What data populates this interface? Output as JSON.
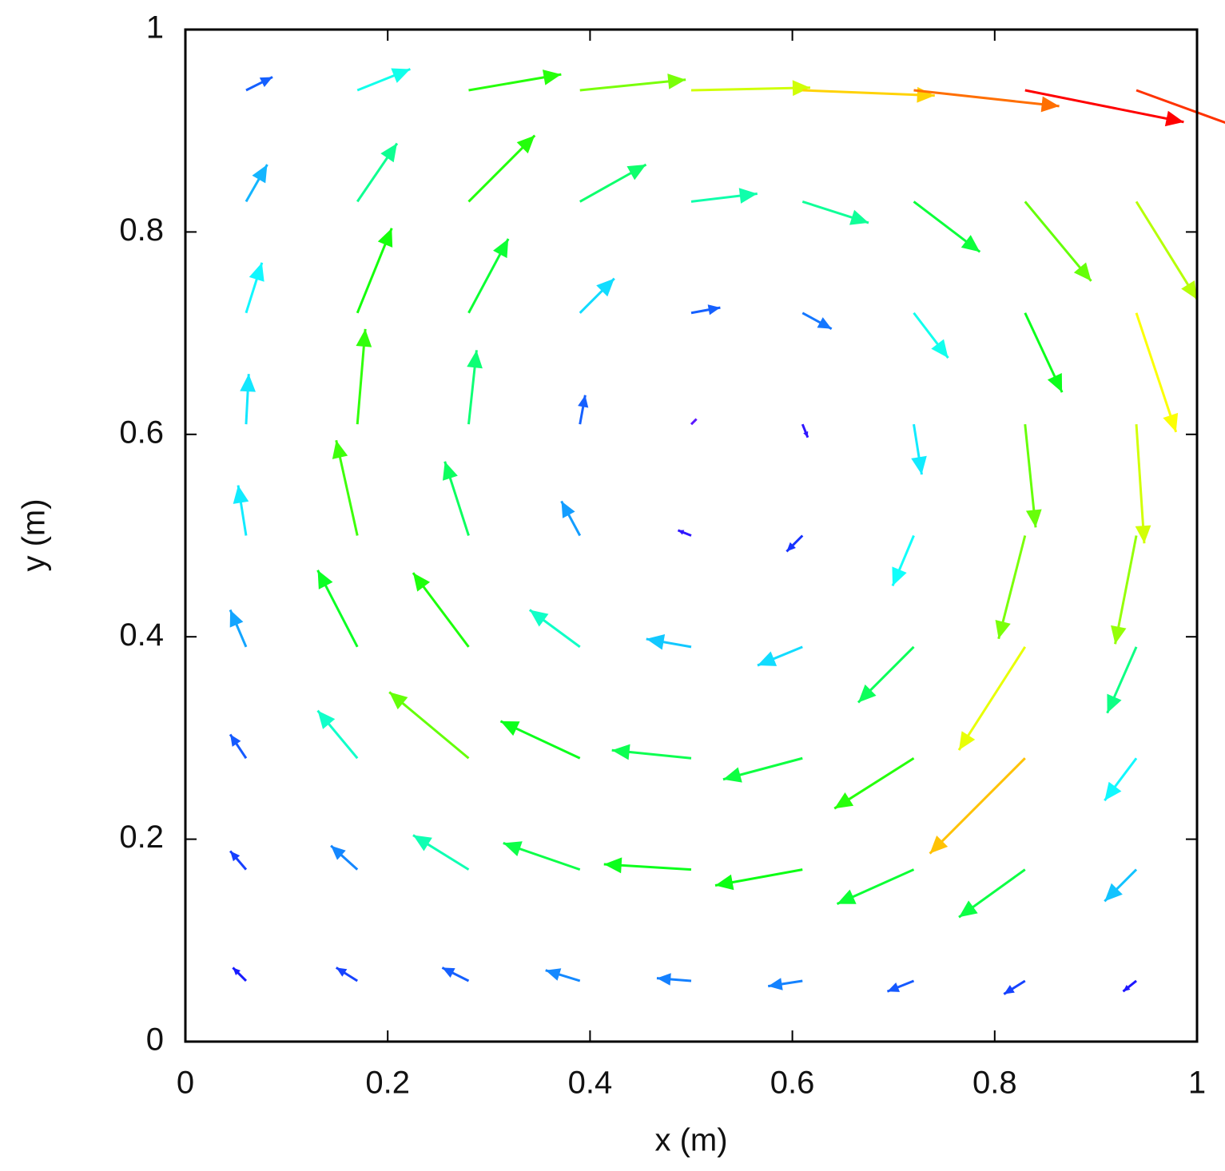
{
  "chart_data": {
    "type": "quiver",
    "xlabel": "x (m)",
    "ylabel": "y (m)",
    "xlim": [
      0,
      1
    ],
    "ylim": [
      0,
      1
    ],
    "xticks": [
      0,
      0.2,
      0.4,
      0.6,
      0.8,
      1
    ],
    "yticks": [
      0,
      0.2,
      0.4,
      0.6,
      0.8,
      1
    ],
    "colormap": "rainbow",
    "x": [
      0.06,
      0.17,
      0.28,
      0.39,
      0.5,
      0.61,
      0.72,
      0.83,
      0.94,
      0.06,
      0.17,
      0.28,
      0.39,
      0.5,
      0.61,
      0.72,
      0.83,
      0.94,
      0.06,
      0.17,
      0.28,
      0.39,
      0.5,
      0.61,
      0.72,
      0.83,
      0.94,
      0.06,
      0.17,
      0.28,
      0.39,
      0.5,
      0.61,
      0.72,
      0.83,
      0.94,
      0.06,
      0.17,
      0.28,
      0.39,
      0.5,
      0.61,
      0.72,
      0.83,
      0.94,
      0.06,
      0.17,
      0.28,
      0.39,
      0.5,
      0.61,
      0.72,
      0.83,
      0.94,
      0.06,
      0.17,
      0.28,
      0.39,
      0.5,
      0.61,
      0.72,
      0.83,
      0.94,
      0.06,
      0.17,
      0.28,
      0.39,
      0.5,
      0.61,
      0.72,
      0.83,
      0.94,
      0.06,
      0.17,
      0.28,
      0.39,
      0.5,
      0.61,
      0.72,
      0.83,
      0.94
    ],
    "y": [
      0.06,
      0.06,
      0.06,
      0.06,
      0.06,
      0.06,
      0.06,
      0.06,
      0.06,
      0.17,
      0.17,
      0.17,
      0.17,
      0.17,
      0.17,
      0.17,
      0.17,
      0.17,
      0.28,
      0.28,
      0.28,
      0.28,
      0.28,
      0.28,
      0.28,
      0.28,
      0.28,
      0.39,
      0.39,
      0.39,
      0.39,
      0.39,
      0.39,
      0.39,
      0.39,
      0.39,
      0.5,
      0.5,
      0.5,
      0.5,
      0.5,
      0.5,
      0.5,
      0.5,
      0.5,
      0.61,
      0.61,
      0.61,
      0.61,
      0.61,
      0.61,
      0.61,
      0.61,
      0.61,
      0.72,
      0.72,
      0.72,
      0.72,
      0.72,
      0.72,
      0.72,
      0.72,
      0.72,
      0.83,
      0.83,
      0.83,
      0.83,
      0.83,
      0.83,
      0.83,
      0.83,
      0.83,
      0.94,
      0.94,
      0.94,
      0.94,
      0.94,
      0.94,
      0.94,
      0.94,
      0.94
    ],
    "u": [
      -0.05,
      -0.08,
      -0.1,
      -0.13,
      -0.13,
      -0.13,
      -0.1,
      -0.08,
      -0.05,
      -0.06,
      -0.1,
      -0.21,
      -0.29,
      -0.33,
      -0.33,
      -0.29,
      -0.25,
      -0.12,
      -0.06,
      -0.15,
      -0.3,
      -0.3,
      -0.3,
      -0.3,
      -0.3,
      -0.36,
      -0.12,
      -0.06,
      -0.15,
      -0.21,
      -0.19,
      -0.17,
      -0.17,
      -0.21,
      -0.25,
      -0.11,
      -0.03,
      -0.08,
      -0.09,
      -0.07,
      -0.05,
      -0.06,
      -0.08,
      -0.1,
      -0.08,
      0.01,
      0.03,
      0.03,
      0.02,
      0.02,
      0.02,
      0.03,
      0.04,
      0.03,
      0.06,
      0.13,
      0.15,
      0.13,
      0.11,
      0.11,
      0.13,
      0.14,
      0.15,
      0.08,
      0.15,
      0.25,
      0.25,
      0.25,
      0.25,
      0.25,
      0.25,
      0.23,
      0.1,
      0.2,
      0.35,
      0.4,
      0.45,
      0.5,
      0.55,
      0.6,
      0.55
    ],
    "v": [
      0.05,
      0.05,
      0.05,
      0.04,
      0.01,
      -0.02,
      -0.04,
      -0.05,
      -0.04,
      0.07,
      0.09,
      0.13,
      0.1,
      0.02,
      -0.06,
      -0.13,
      -0.18,
      -0.12,
      0.09,
      0.18,
      0.25,
      0.14,
      0.03,
      -0.08,
      -0.19,
      -0.36,
      -0.16,
      0.14,
      0.29,
      0.28,
      0.14,
      0.03,
      -0.07,
      -0.21,
      -0.39,
      -0.25,
      0.19,
      0.36,
      0.28,
      0.13,
      0.02,
      -0.06,
      -0.19,
      -0.39,
      -0.41,
      0.19,
      0.36,
      0.28,
      0.11,
      0.02,
      -0.05,
      -0.19,
      -0.39,
      -0.45,
      0.19,
      0.32,
      0.28,
      0.13,
      0.02,
      -0.06,
      -0.17,
      -0.3,
      -0.45,
      0.14,
      0.22,
      0.25,
      0.14,
      0.03,
      -0.08,
      -0.19,
      -0.3,
      -0.37,
      0.05,
      0.08,
      0.06,
      0.04,
      0.01,
      -0.02,
      -0.06,
      -0.12,
      -0.2
    ]
  }
}
